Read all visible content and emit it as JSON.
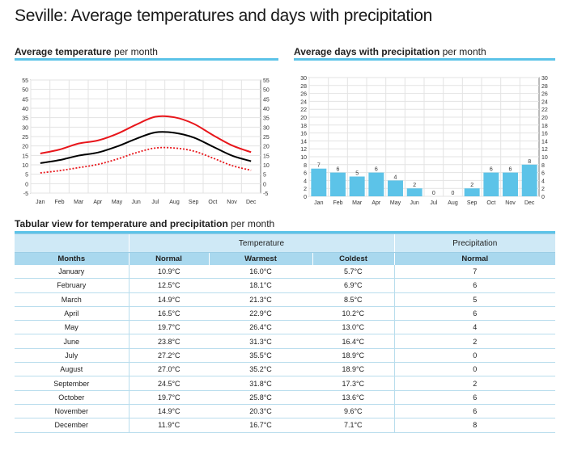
{
  "page": {
    "title": "Seville: Average temperatures and days with precipitation",
    "temp_section": {
      "bold": "Average temperature",
      "rest": " per month"
    },
    "precip_section": {
      "bold": "Average days with precipitation",
      "rest": " per month"
    },
    "table_section": {
      "bold": "Tabular view for temperature and precipitation",
      "rest": " per month"
    }
  },
  "colors": {
    "accent": "#5cc3e8",
    "bar": "#5cc3e8",
    "warmest": "#e8161b",
    "normal": "#000000",
    "coldest": "#e8161b"
  },
  "chart_data": [
    {
      "type": "line",
      "categories": [
        "Jan",
        "Feb",
        "Mar",
        "Apr",
        "May",
        "Jun",
        "Jul",
        "Aug",
        "Sep",
        "Oct",
        "Nov",
        "Dec"
      ],
      "series": [
        {
          "values": [
            16.0,
            18.1,
            21.3,
            22.9,
            26.4,
            31.3,
            35.5,
            35.2,
            31.8,
            25.8,
            20.3,
            16.7
          ],
          "color": "#e8161b",
          "style": "solid"
        },
        {
          "values": [
            10.9,
            12.5,
            14.9,
            16.5,
            19.7,
            23.8,
            27.2,
            27.0,
            24.5,
            19.7,
            14.9,
            11.9
          ],
          "color": "#000000",
          "style": "solid"
        },
        {
          "values": [
            5.7,
            6.9,
            8.5,
            10.2,
            13.0,
            16.4,
            18.9,
            18.9,
            17.3,
            13.6,
            9.6,
            7.1
          ],
          "color": "#e8161b",
          "style": "dotted"
        }
      ],
      "ylim": [
        -5,
        55
      ],
      "yticks": [
        -5,
        0,
        5,
        10,
        15,
        20,
        25,
        30,
        35,
        40,
        45,
        50,
        55
      ],
      "grid": true,
      "legend": "none"
    },
    {
      "type": "bar",
      "categories": [
        "Jan",
        "Feb",
        "Mar",
        "Apr",
        "May",
        "Jun",
        "Jul",
        "Aug",
        "Sep",
        "Oct",
        "Nov",
        "Dec"
      ],
      "values": [
        7,
        6,
        5,
        6,
        4,
        2,
        0,
        0,
        2,
        6,
        6,
        8
      ],
      "ylim": [
        0,
        30
      ],
      "yticks": [
        0,
        2,
        4,
        6,
        8,
        10,
        12,
        14,
        16,
        18,
        20,
        22,
        24,
        26,
        28,
        30
      ],
      "grid": true,
      "legend": "none"
    },
    {
      "type": "table",
      "group_headers": {
        "temperature": "Temperature",
        "precipitation": "Precipitation"
      },
      "columns": [
        "Months",
        "Normal",
        "Warmest",
        "Coldest",
        "Normal"
      ],
      "rows": [
        [
          "January",
          "10.9°C",
          "16.0°C",
          "5.7°C",
          "7"
        ],
        [
          "February",
          "12.5°C",
          "18.1°C",
          "6.9°C",
          "6"
        ],
        [
          "March",
          "14.9°C",
          "21.3°C",
          "8.5°C",
          "5"
        ],
        [
          "April",
          "16.5°C",
          "22.9°C",
          "10.2°C",
          "6"
        ],
        [
          "May",
          "19.7°C",
          "26.4°C",
          "13.0°C",
          "4"
        ],
        [
          "June",
          "23.8°C",
          "31.3°C",
          "16.4°C",
          "2"
        ],
        [
          "July",
          "27.2°C",
          "35.5°C",
          "18.9°C",
          "0"
        ],
        [
          "August",
          "27.0°C",
          "35.2°C",
          "18.9°C",
          "0"
        ],
        [
          "September",
          "24.5°C",
          "31.8°C",
          "17.3°C",
          "2"
        ],
        [
          "October",
          "19.7°C",
          "25.8°C",
          "13.6°C",
          "6"
        ],
        [
          "November",
          "14.9°C",
          "20.3°C",
          "9.6°C",
          "6"
        ],
        [
          "December",
          "11.9°C",
          "16.7°C",
          "7.1°C",
          "8"
        ]
      ]
    }
  ]
}
